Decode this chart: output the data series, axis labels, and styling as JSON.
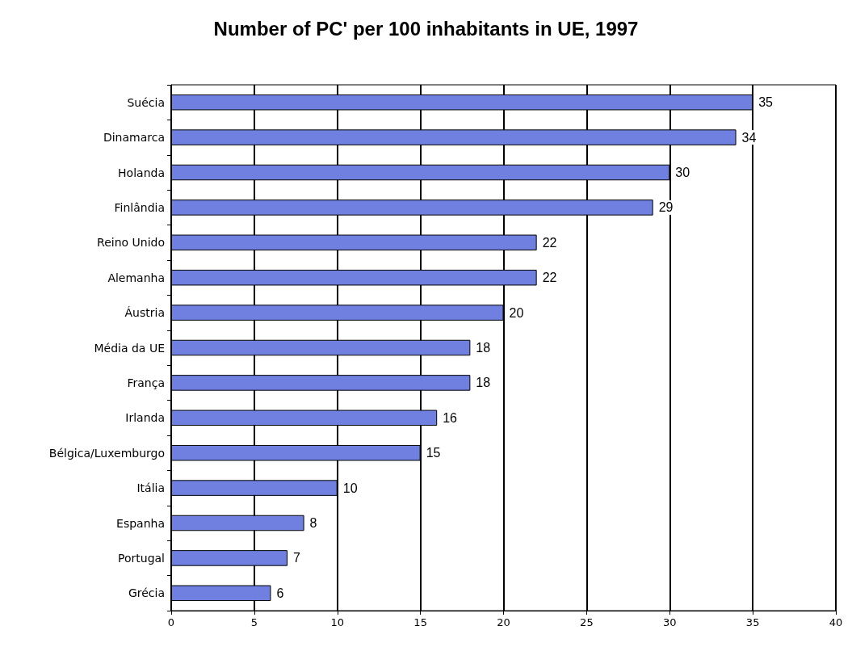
{
  "chart_data": {
    "type": "bar",
    "orientation": "horizontal",
    "title": "Number of PC' per 100 inhabitants in UE, 1997",
    "categories": [
      "Suécia",
      "Dinamarca",
      "Holanda",
      "Finlândia",
      "Reino Unido",
      "Alemanha",
      "Áustria",
      "Média da UE",
      "França",
      "Irlanda",
      "Bélgica/Luxemburgo",
      "Itália",
      "Espanha",
      "Portugal",
      "Grécia"
    ],
    "values": [
      35,
      34,
      30,
      29,
      22,
      22,
      20,
      18,
      18,
      16,
      15,
      10,
      8,
      7,
      6
    ],
    "color": "#6f80e0",
    "xlim": [
      0,
      40
    ],
    "xticks": [
      0,
      5,
      10,
      15,
      20,
      25,
      30,
      35,
      40
    ],
    "grid": "x",
    "data_labels": true
  }
}
